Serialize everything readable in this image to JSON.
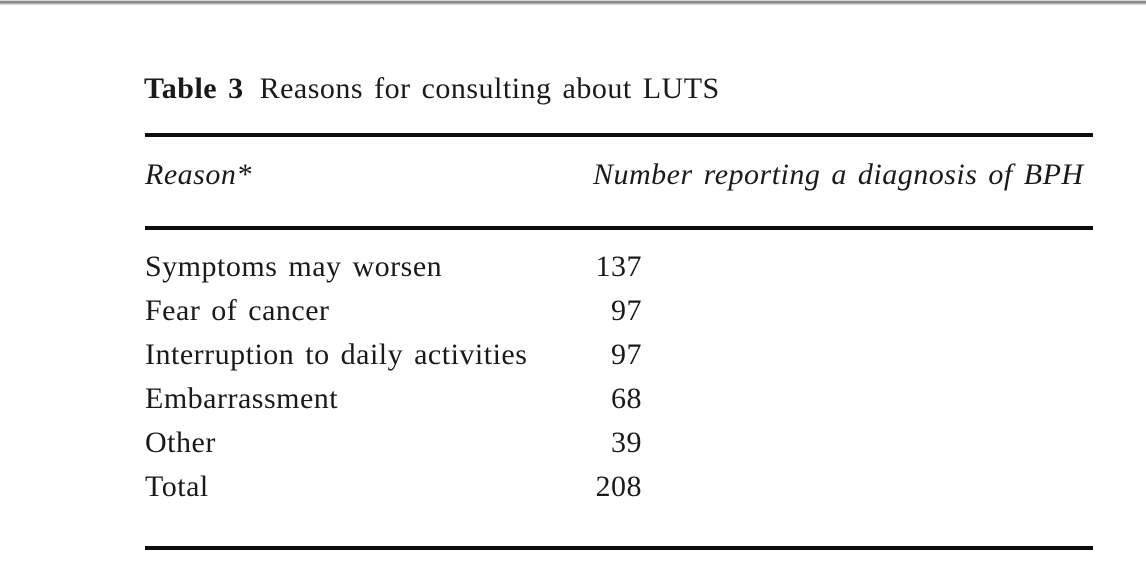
{
  "window": {
    "top_edge_color": "#8b8b8b"
  },
  "doc": {
    "caption": {
      "label": "Table 3",
      "title": "Reasons for consulting about LUTS"
    },
    "table": {
      "header": {
        "reason": "Reason*",
        "number": "Number reporting a diagnosis of BPH"
      },
      "rows": [
        {
          "reason": "Symptoms may worsen",
          "number": "137"
        },
        {
          "reason": "Fear of cancer",
          "number": "97"
        },
        {
          "reason": "Interruption to daily activities",
          "number": "97"
        },
        {
          "reason": "Embarrassment",
          "number": "68"
        },
        {
          "reason": "Other",
          "number": "39"
        },
        {
          "reason": "Total",
          "number": "208"
        }
      ]
    },
    "colors": {
      "text": "#1a1a1a",
      "rule": "#0d0d0d",
      "page_background": "#ffffff"
    }
  }
}
